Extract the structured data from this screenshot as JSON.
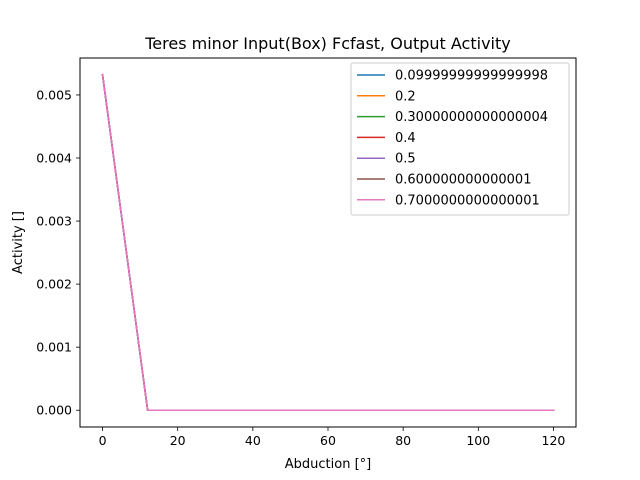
{
  "chart_data": {
    "type": "line",
    "title": "Teres minor Input(Box) Fcfast, Output Activity",
    "xlabel": "Abduction [°]",
    "ylabel": "Activity []",
    "xlim": [
      -6,
      126
    ],
    "ylim": [
      -0.000266,
      0.005586
    ],
    "xticks": [
      0,
      20,
      40,
      60,
      80,
      100,
      120
    ],
    "xtick_labels": [
      "0",
      "20",
      "40",
      "60",
      "80",
      "100",
      "120"
    ],
    "yticks": [
      0.0,
      0.001,
      0.002,
      0.003,
      0.004,
      0.005
    ],
    "ytick_labels": [
      "0.000",
      "0.001",
      "0.002",
      "0.003",
      "0.004",
      "0.005"
    ],
    "grid": false,
    "legend_position": "top-right",
    "x": [
      0,
      12,
      120
    ],
    "series": [
      {
        "name": "0.09999999999999998",
        "color": "#1f77b4",
        "values": [
          0.00532,
          0.0,
          0.0
        ]
      },
      {
        "name": "0.2",
        "color": "#ff7f0e",
        "values": [
          0.00532,
          0.0,
          0.0
        ]
      },
      {
        "name": "0.30000000000000004",
        "color": "#2ca02c",
        "values": [
          0.00532,
          0.0,
          0.0
        ]
      },
      {
        "name": "0.4",
        "color": "#d62728",
        "values": [
          0.00532,
          0.0,
          0.0
        ]
      },
      {
        "name": "0.5",
        "color": "#9467bd",
        "values": [
          0.00532,
          0.0,
          0.0
        ]
      },
      {
        "name": "0.600000000000001",
        "color": "#8c564b",
        "values": [
          0.00532,
          0.0,
          0.0
        ]
      },
      {
        "name": "0.7000000000000001",
        "color": "#e377c2",
        "values": [
          0.00532,
          0.0,
          0.0
        ]
      }
    ]
  }
}
